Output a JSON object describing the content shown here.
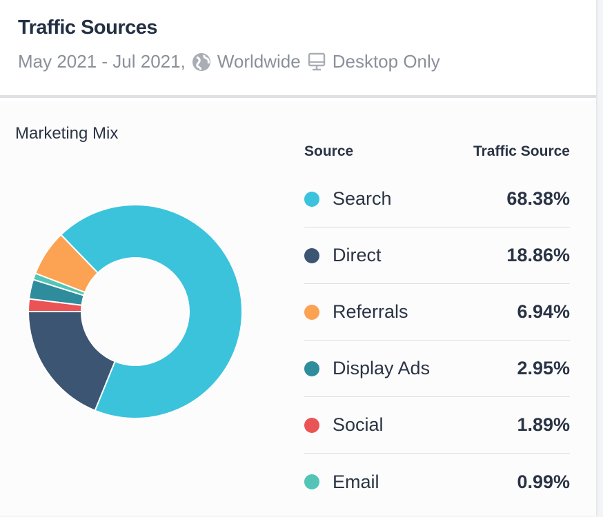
{
  "header": {
    "title": "Traffic Sources",
    "date_range": "May 2021 - Jul 2021,",
    "region": "Worldwide",
    "device": "Desktop Only"
  },
  "section_title": "Marketing Mix",
  "legend": {
    "col_source": "Source",
    "col_traffic": "Traffic Source"
  },
  "chart_data": {
    "type": "pie",
    "title": "Marketing Mix",
    "donut": true,
    "slices": [
      {
        "label": "Search",
        "value": 68.38,
        "display": "68.38%",
        "color": "#3bc3dc"
      },
      {
        "label": "Direct",
        "value": 18.86,
        "display": "18.86%",
        "color": "#3b5572"
      },
      {
        "label": "Referrals",
        "value": 6.94,
        "display": "6.94%",
        "color": "#fca253"
      },
      {
        "label": "Display Ads",
        "value": 2.95,
        "display": "2.95%",
        "color": "#2f8c9d"
      },
      {
        "label": "Social",
        "value": 1.89,
        "display": "1.89%",
        "color": "#ea5455"
      },
      {
        "label": "Email",
        "value": 0.99,
        "display": "0.99%",
        "color": "#53c4b5"
      }
    ],
    "draw_order": [
      "Search",
      "Direct",
      "Social",
      "Display Ads",
      "Email",
      "Referrals"
    ]
  }
}
